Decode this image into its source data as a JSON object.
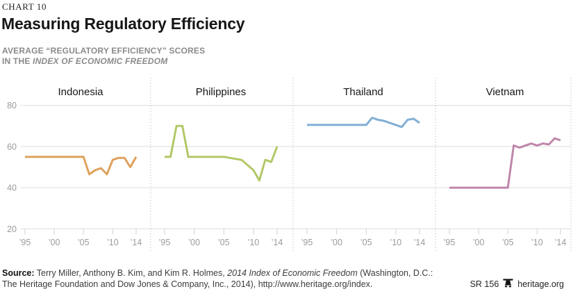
{
  "header": {
    "chart_number": "CHART 10",
    "title": "Measuring Regulatory Efficiency",
    "subtitle_line1": "AVERAGE “REGULATORY EFFICIENCY” SCORES",
    "subtitle_line2_prefix": "IN THE ",
    "subtitle_line2_italic": "INDEX OF ECONOMIC FREEDOM"
  },
  "chart_data": {
    "type": "line",
    "title": "Average “Regulatory Efficiency” Scores in the Index of Economic Freedom",
    "grid": true,
    "legend_position": "none (per-panel titles)",
    "ylim": [
      20,
      85
    ],
    "y_ticks": [
      80,
      60,
      40,
      20
    ],
    "years": [
      1995,
      1996,
      1997,
      1998,
      1999,
      2000,
      2001,
      2002,
      2003,
      2004,
      2005,
      2006,
      2007,
      2008,
      2009,
      2010,
      2011,
      2012,
      2013,
      2014
    ],
    "x_ticks": [
      {
        "year": 1995,
        "label": "’95"
      },
      {
        "year": 2000,
        "label": "’00"
      },
      {
        "year": 2005,
        "label": "’05"
      },
      {
        "year": 2010,
        "label": "’10"
      },
      {
        "year": 2014,
        "label": "’14"
      }
    ],
    "panels": [
      {
        "name": "Indonesia",
        "color": "#DEA25C",
        "values": [
          55,
          55,
          55,
          55,
          55,
          55,
          55,
          55,
          55,
          55,
          55,
          46.5,
          48.5,
          49.5,
          46.5,
          53.5,
          54.5,
          54.5,
          50,
          55
        ]
      },
      {
        "name": "Philippines",
        "color": "#B2C867",
        "values": [
          55,
          55,
          70,
          70,
          55,
          55,
          55,
          55,
          55,
          55,
          55,
          54.5,
          54,
          53.5,
          51,
          48.5,
          43.5,
          53.5,
          52.5,
          60
        ]
      },
      {
        "name": "Thailand",
        "color": "#82AFD5",
        "values": [
          70.5,
          70.5,
          70.5,
          70.5,
          70.5,
          70.5,
          70.5,
          70.5,
          70.5,
          70.5,
          70.5,
          74,
          73,
          72.5,
          71.5,
          70.5,
          69.5,
          73,
          73.5,
          71.5
        ]
      },
      {
        "name": "Vietnam",
        "color": "#BF86AA",
        "values": [
          40,
          40,
          40,
          40,
          40,
          40,
          40,
          40,
          40,
          40,
          40,
          60.5,
          59.5,
          60.5,
          61.5,
          60.5,
          61.5,
          61,
          64,
          63
        ]
      }
    ],
    "colors": {
      "gridline": "#dcdcdc",
      "separator": "#b0b0b0",
      "tick": "#cfcfcf",
      "axis_label": "#9b9b9b",
      "panel_title": "#161616"
    }
  },
  "footer": {
    "source_label": "Source:",
    "source_text_1": " Terry Miller, Anthony B. Kim, and Kim R. Holmes, ",
    "source_italic": "2014 Index of Economic Freedom",
    "source_text_2": " (Washington, D.C.:",
    "source_line2": "The Heritage Foundation and Dow Jones & Company, Inc., 2014), http://www.heritage.org/index.",
    "report_number": "SR 156",
    "website": "heritage.org"
  }
}
